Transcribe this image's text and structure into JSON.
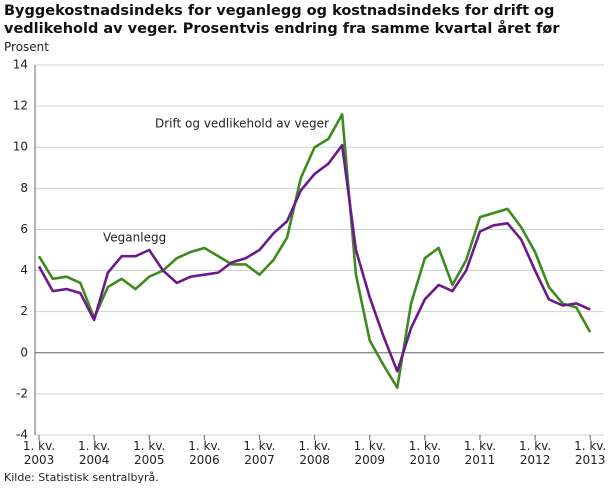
{
  "chart_data": {
    "type": "line",
    "title": "Byggekostnadsindeks for veganlegg og kostnadsindeks for drift og vedlikehold av veger. Prosentvis endring fra samme kvartal året før",
    "y_label": "Prosent",
    "source": "Kilde: Statistisk sentralbyrå.",
    "categories": [
      "1. kv. 2003",
      null,
      null,
      null,
      "1. kv. 2004",
      null,
      null,
      null,
      "1. kv. 2005",
      null,
      null,
      null,
      "1. kv. 2006",
      null,
      null,
      null,
      "1. kv. 2007",
      null,
      null,
      null,
      "1. kv. 2008",
      null,
      null,
      null,
      "1. kv. 2009",
      null,
      null,
      null,
      "1. kv. 2010",
      null,
      null,
      null,
      "1. kv. 2011",
      null,
      null,
      null,
      "1. kv. 2012",
      null,
      null,
      null,
      "1. kv. 2013"
    ],
    "series": [
      {
        "name": "Drift og vedlikehold av veger",
        "color": "#3f8a1f",
        "values": [
          4.7,
          3.6,
          3.7,
          3.4,
          1.7,
          3.2,
          3.6,
          3.1,
          3.7,
          4.0,
          4.6,
          4.9,
          5.1,
          4.7,
          4.3,
          4.3,
          3.8,
          4.5,
          5.6,
          8.5,
          10.0,
          10.4,
          11.6,
          3.8,
          0.6,
          -0.6,
          -1.7,
          2.4,
          4.6,
          5.1,
          3.3,
          4.5,
          6.6,
          6.8,
          7.0,
          6.1,
          4.9,
          3.2,
          2.4,
          2.2,
          1.0
        ]
      },
      {
        "name": "Veganlegg",
        "color": "#6b1a8c",
        "values": [
          4.2,
          3.0,
          3.1,
          2.9,
          1.6,
          3.9,
          4.7,
          4.7,
          5.0,
          4.0,
          3.4,
          3.7,
          3.8,
          3.9,
          4.4,
          4.6,
          5.0,
          5.8,
          6.4,
          7.9,
          8.7,
          9.2,
          10.1,
          5.0,
          2.7,
          0.8,
          -0.9,
          1.2,
          2.6,
          3.3,
          3.0,
          4.0,
          5.9,
          6.2,
          6.3,
          5.5,
          4.0,
          2.6,
          2.3,
          2.4,
          2.1
        ]
      }
    ],
    "ylim": [
      -4,
      14
    ],
    "yticks": [
      -4,
      -2,
      0,
      2,
      4,
      6,
      8,
      10,
      12,
      14
    ],
    "grid": true
  }
}
